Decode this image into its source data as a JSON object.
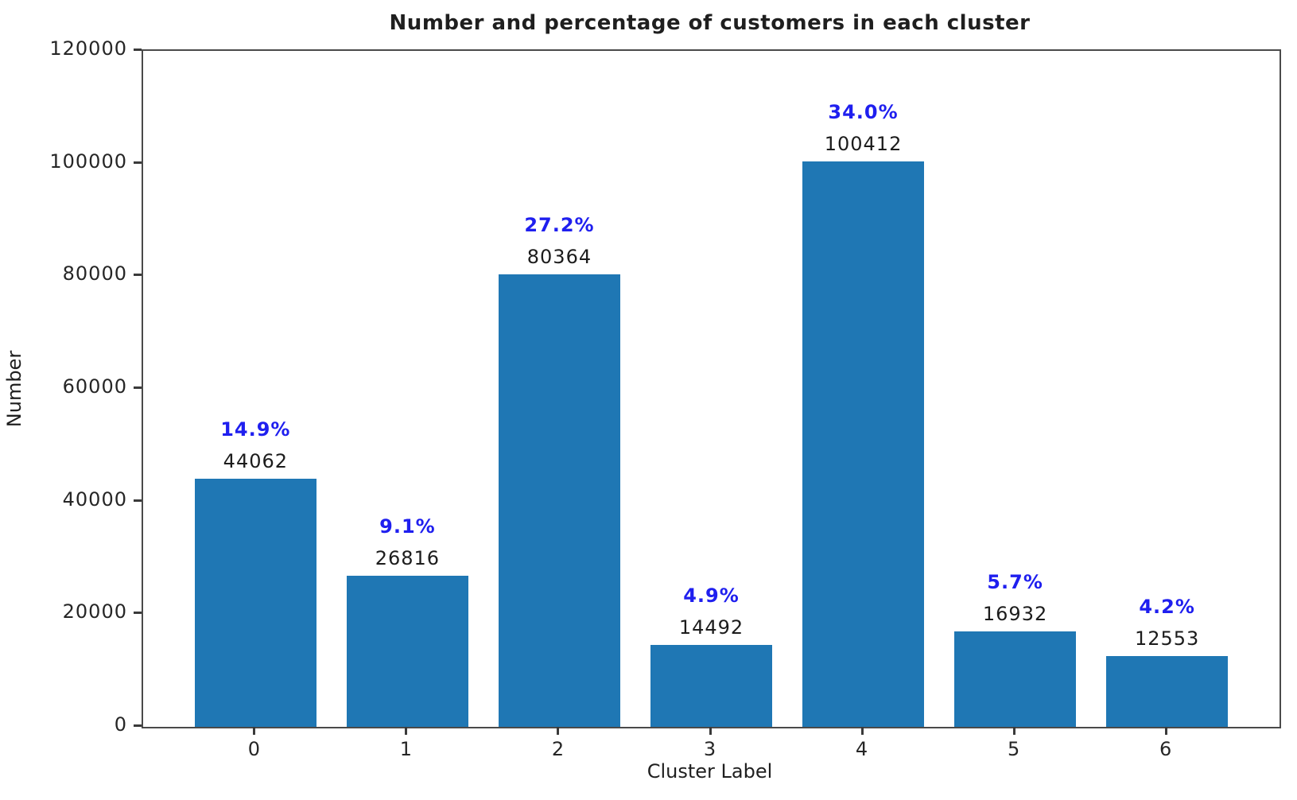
{
  "chart_data": {
    "type": "bar",
    "title": "Number and percentage of customers in each cluster",
    "xlabel": "Cluster Label",
    "ylabel": "Number",
    "categories": [
      "0",
      "1",
      "2",
      "3",
      "4",
      "5",
      "6"
    ],
    "values": [
      44062,
      26816,
      80364,
      14492,
      100412,
      16932,
      12553
    ],
    "percent_labels": [
      "14.9%",
      "9.1%",
      "27.2%",
      "4.9%",
      "34.0%",
      "5.7%",
      "4.2%"
    ],
    "ylim": [
      0,
      120000
    ],
    "yticks": [
      0,
      20000,
      40000,
      60000,
      80000,
      100000,
      120000
    ],
    "ytick_labels": [
      "0",
      "20000",
      "40000",
      "60000",
      "80000",
      "100000",
      "120000"
    ],
    "bar_color": "#1f77b4",
    "value_label_color": "#1c1c1c",
    "percent_label_color": "#1f1fef",
    "grid": false,
    "legend": null
  }
}
